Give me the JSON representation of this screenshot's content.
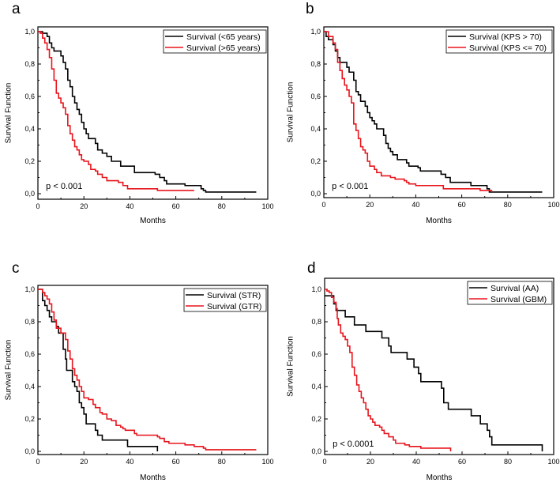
{
  "chart_data": [
    {
      "type": "line",
      "panel": "a",
      "xlabel": "Months",
      "ylabel": "Survival Function",
      "xlim": [
        0,
        100
      ],
      "ylim": [
        0,
        1
      ],
      "x_ticks": [
        "0",
        "20",
        "40",
        "60",
        "80",
        "100"
      ],
      "y_ticks": [
        "0,0",
        "0,2",
        "0,4",
        "0,6",
        "0,8",
        "1,0"
      ],
      "annotation": "p < 0.001",
      "legend_position": "top-right",
      "series": [
        {
          "name": "Survival  (<65 years)",
          "color": "#000000",
          "points": [
            [
              0,
              1
            ],
            [
              2,
              0.99
            ],
            [
              4,
              0.97
            ],
            [
              5,
              0.93
            ],
            [
              6,
              0.9
            ],
            [
              7,
              0.88
            ],
            [
              10,
              0.85
            ],
            [
              11,
              0.81
            ],
            [
              12,
              0.77
            ],
            [
              13,
              0.7
            ],
            [
              14,
              0.66
            ],
            [
              15,
              0.6
            ],
            [
              16,
              0.56
            ],
            [
              17,
              0.52
            ],
            [
              18,
              0.49
            ],
            [
              19,
              0.44
            ],
            [
              20,
              0.4
            ],
            [
              21,
              0.37
            ],
            [
              22,
              0.34
            ],
            [
              25,
              0.31
            ],
            [
              26,
              0.27
            ],
            [
              28,
              0.25
            ],
            [
              30,
              0.23
            ],
            [
              32,
              0.2
            ],
            [
              36,
              0.17
            ],
            [
              42,
              0.13
            ],
            [
              51,
              0.12
            ],
            [
              53,
              0.1
            ],
            [
              55,
              0.08
            ],
            [
              56,
              0.06
            ],
            [
              64,
              0.05
            ],
            [
              71,
              0.03
            ],
            [
              72,
              0.02
            ],
            [
              73,
              0.01
            ],
            [
              95,
              0.01
            ]
          ]
        },
        {
          "name": "Survival  (>65 years)",
          "color": "#e8141c",
          "points": [
            [
              0,
              1
            ],
            [
              1,
              0.99
            ],
            [
              2,
              0.96
            ],
            [
              3,
              0.93
            ],
            [
              4,
              0.89
            ],
            [
              5,
              0.84
            ],
            [
              6,
              0.77
            ],
            [
              7,
              0.7
            ],
            [
              8,
              0.62
            ],
            [
              9,
              0.59
            ],
            [
              10,
              0.56
            ],
            [
              11,
              0.53
            ],
            [
              12,
              0.49
            ],
            [
              13,
              0.42
            ],
            [
              14,
              0.37
            ],
            [
              15,
              0.33
            ],
            [
              16,
              0.29
            ],
            [
              17,
              0.27
            ],
            [
              18,
              0.24
            ],
            [
              19,
              0.21
            ],
            [
              20,
              0.2
            ],
            [
              22,
              0.18
            ],
            [
              23,
              0.15
            ],
            [
              25,
              0.14
            ],
            [
              26,
              0.12
            ],
            [
              28,
              0.1
            ],
            [
              30,
              0.08
            ],
            [
              35,
              0.07
            ],
            [
              37,
              0.05
            ],
            [
              39,
              0.03
            ],
            [
              52,
              0.02
            ],
            [
              68,
              0.02
            ]
          ]
        }
      ]
    },
    {
      "type": "line",
      "panel": "b",
      "xlabel": "Months",
      "ylabel": "Survival Function",
      "xlim": [
        0,
        100
      ],
      "ylim": [
        0,
        1
      ],
      "x_ticks": [
        "0",
        "20",
        "40",
        "60",
        "80",
        "100"
      ],
      "y_ticks": [
        "0,0",
        "0,2",
        "0,4",
        "0,6",
        "0,8",
        "1,0"
      ],
      "annotation": "p < 0.001",
      "legend_position": "top-right",
      "series": [
        {
          "name": "Survival  (KPS > 70)",
          "color": "#000000",
          "points": [
            [
              0,
              1
            ],
            [
              1,
              0.97
            ],
            [
              2,
              0.95
            ],
            [
              4,
              0.92
            ],
            [
              5,
              0.88
            ],
            [
              6,
              0.84
            ],
            [
              7,
              0.81
            ],
            [
              10,
              0.78
            ],
            [
              11,
              0.75
            ],
            [
              13,
              0.7
            ],
            [
              14,
              0.63
            ],
            [
              15,
              0.61
            ],
            [
              16,
              0.57
            ],
            [
              18,
              0.54
            ],
            [
              19,
              0.5
            ],
            [
              20,
              0.47
            ],
            [
              21,
              0.45
            ],
            [
              22,
              0.43
            ],
            [
              23,
              0.4
            ],
            [
              26,
              0.36
            ],
            [
              27,
              0.31
            ],
            [
              28,
              0.28
            ],
            [
              29,
              0.26
            ],
            [
              30,
              0.24
            ],
            [
              32,
              0.21
            ],
            [
              36,
              0.19
            ],
            [
              37,
              0.17
            ],
            [
              41,
              0.16
            ],
            [
              42,
              0.14
            ],
            [
              51,
              0.12
            ],
            [
              53,
              0.1
            ],
            [
              55,
              0.07
            ],
            [
              64,
              0.05
            ],
            [
              71,
              0.03
            ],
            [
              72,
              0.01
            ],
            [
              95,
              0.01
            ]
          ]
        },
        {
          "name": "Survival  (KPS <= 70)",
          "color": "#e8141c",
          "points": [
            [
              0,
              1
            ],
            [
              2,
              0.97
            ],
            [
              4,
              0.93
            ],
            [
              5,
              0.89
            ],
            [
              6,
              0.81
            ],
            [
              7,
              0.76
            ],
            [
              8,
              0.71
            ],
            [
              9,
              0.67
            ],
            [
              10,
              0.64
            ],
            [
              11,
              0.6
            ],
            [
              12,
              0.56
            ],
            [
              13,
              0.43
            ],
            [
              14,
              0.39
            ],
            [
              15,
              0.34
            ],
            [
              16,
              0.29
            ],
            [
              17,
              0.27
            ],
            [
              18,
              0.25
            ],
            [
              19,
              0.2
            ],
            [
              20,
              0.17
            ],
            [
              22,
              0.15
            ],
            [
              23,
              0.13
            ],
            [
              25,
              0.11
            ],
            [
              29,
              0.1
            ],
            [
              31,
              0.09
            ],
            [
              35,
              0.08
            ],
            [
              36,
              0.07
            ],
            [
              37,
              0.06
            ],
            [
              40,
              0.05
            ],
            [
              52,
              0.03
            ],
            [
              68,
              0.02
            ],
            [
              73,
              0.01
            ]
          ]
        }
      ]
    },
    {
      "type": "line",
      "panel": "c",
      "xlabel": "Months",
      "ylabel": "Survival Function",
      "xlim": [
        0,
        100
      ],
      "ylim": [
        0,
        1
      ],
      "x_ticks": [
        "0",
        "20",
        "40",
        "60",
        "80",
        "100"
      ],
      "y_ticks": [
        "0,0",
        "0,2",
        "0,4",
        "0,6",
        "0,8",
        "1,0"
      ],
      "annotation": "",
      "legend_position": "top-right",
      "series": [
        {
          "name": "Survival  (STR)",
          "color": "#000000",
          "points": [
            [
              0,
              1
            ],
            [
              2,
              0.93
            ],
            [
              3,
              0.9
            ],
            [
              4,
              0.87
            ],
            [
              5,
              0.83
            ],
            [
              6,
              0.8
            ],
            [
              8,
              0.77
            ],
            [
              9,
              0.73
            ],
            [
              11,
              0.63
            ],
            [
              12,
              0.57
            ],
            [
              12.5,
              0.5
            ],
            [
              15,
              0.43
            ],
            [
              16,
              0.4
            ],
            [
              17,
              0.37
            ],
            [
              18,
              0.3
            ],
            [
              19,
              0.27
            ],
            [
              20,
              0.23
            ],
            [
              21,
              0.17
            ],
            [
              25,
              0.13
            ],
            [
              26,
              0.1
            ],
            [
              28,
              0.07
            ],
            [
              39,
              0.03
            ],
            [
              52,
              0.03
            ],
            [
              52,
              0
            ]
          ]
        },
        {
          "name": "Survival  (GTR)",
          "color": "#e8141c",
          "points": [
            [
              0,
              1
            ],
            [
              2,
              0.98
            ],
            [
              3,
              0.96
            ],
            [
              4,
              0.94
            ],
            [
              5,
              0.91
            ],
            [
              6,
              0.86
            ],
            [
              7,
              0.81
            ],
            [
              8,
              0.76
            ],
            [
              10,
              0.73
            ],
            [
              12,
              0.69
            ],
            [
              13,
              0.62
            ],
            [
              14,
              0.57
            ],
            [
              15,
              0.51
            ],
            [
              16,
              0.47
            ],
            [
              17,
              0.44
            ],
            [
              18,
              0.4
            ],
            [
              19,
              0.37
            ],
            [
              20,
              0.33
            ],
            [
              22,
              0.32
            ],
            [
              24,
              0.29
            ],
            [
              25,
              0.27
            ],
            [
              27,
              0.24
            ],
            [
              28,
              0.23
            ],
            [
              30,
              0.2
            ],
            [
              32,
              0.19
            ],
            [
              34,
              0.16
            ],
            [
              36,
              0.15
            ],
            [
              37,
              0.14
            ],
            [
              38,
              0.13
            ],
            [
              42,
              0.11
            ],
            [
              43,
              0.1
            ],
            [
              52,
              0.09
            ],
            [
              53,
              0.08
            ],
            [
              55,
              0.06
            ],
            [
              57,
              0.05
            ],
            [
              64,
              0.04
            ],
            [
              68,
              0.03
            ],
            [
              72,
              0.02
            ],
            [
              73,
              0.01
            ],
            [
              95,
              0.01
            ]
          ]
        }
      ]
    },
    {
      "type": "line",
      "panel": "d",
      "xlabel": "Months",
      "ylabel": "Survival Function",
      "xlim": [
        0,
        100
      ],
      "ylim": [
        0,
        1
      ],
      "x_ticks": [
        "0",
        "20",
        "40",
        "60",
        "80",
        "100"
      ],
      "y_ticks": [
        "0,0",
        "0,2",
        "0,4",
        "0,6",
        "0,8",
        "1,0"
      ],
      "annotation": "p < 0.0001",
      "legend_position": "top-right",
      "series": [
        {
          "name": "Survival  (AA)",
          "color": "#000000",
          "points": [
            [
              0,
              0.96
            ],
            [
              3,
              0.96
            ],
            [
              4,
              0.91
            ],
            [
              5,
              0.87
            ],
            [
              9,
              0.83
            ],
            [
              13,
              0.78
            ],
            [
              18,
              0.74
            ],
            [
              25,
              0.7
            ],
            [
              28,
              0.65
            ],
            [
              29,
              0.61
            ],
            [
              36,
              0.57
            ],
            [
              39,
              0.52
            ],
            [
              41,
              0.48
            ],
            [
              42,
              0.43
            ],
            [
              51,
              0.39
            ],
            [
              52,
              0.3
            ],
            [
              54,
              0.26
            ],
            [
              64,
              0.22
            ],
            [
              68,
              0.17
            ],
            [
              71,
              0.13
            ],
            [
              72,
              0.09
            ],
            [
              73,
              0.04
            ],
            [
              95,
              0.04
            ],
            [
              95,
              0
            ]
          ]
        },
        {
          "name": "Survival  (GBM)",
          "color": "#e8141c",
          "points": [
            [
              0,
              1
            ],
            [
              1,
              0.99
            ],
            [
              2,
              0.98
            ],
            [
              3,
              0.95
            ],
            [
              4,
              0.92
            ],
            [
              5,
              0.88
            ],
            [
              5.5,
              0.82
            ],
            [
              6,
              0.78
            ],
            [
              7,
              0.73
            ],
            [
              8,
              0.71
            ],
            [
              9,
              0.69
            ],
            [
              10,
              0.65
            ],
            [
              11,
              0.61
            ],
            [
              12,
              0.52
            ],
            [
              13,
              0.47
            ],
            [
              14,
              0.41
            ],
            [
              15,
              0.37
            ],
            [
              16,
              0.33
            ],
            [
              17,
              0.3
            ],
            [
              18,
              0.26
            ],
            [
              19,
              0.22
            ],
            [
              20,
              0.2
            ],
            [
              21,
              0.18
            ],
            [
              22,
              0.16
            ],
            [
              24,
              0.15
            ],
            [
              25,
              0.13
            ],
            [
              26,
              0.11
            ],
            [
              28,
              0.09
            ],
            [
              30,
              0.07
            ],
            [
              31,
              0.05
            ],
            [
              35,
              0.04
            ],
            [
              37,
              0.03
            ],
            [
              42,
              0.02
            ],
            [
              55,
              0.02
            ],
            [
              55,
              0
            ]
          ]
        }
      ]
    }
  ]
}
